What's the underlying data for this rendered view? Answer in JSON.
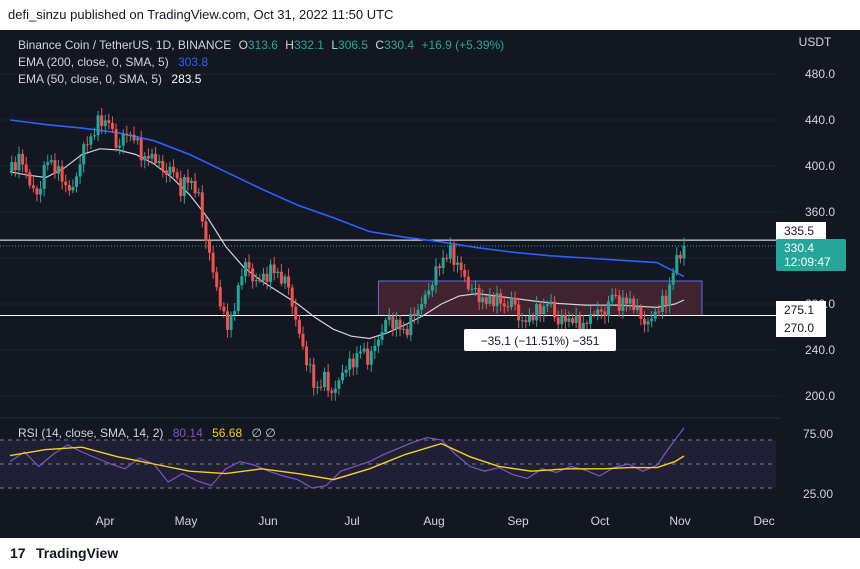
{
  "header": {
    "publisher_line": "defi_sinzu published on TradingView.com, Oct 31, 2022 11:50 UTC"
  },
  "footer": {
    "logo_glyph": "17",
    "brand": "TradingView"
  },
  "legend": {
    "symbol": "Binance Coin / TetherUS, 1D, BINANCE",
    "o_label": "O",
    "o": "313.6",
    "h_label": "H",
    "h": "332.1",
    "l_label": "L",
    "l": "306.5",
    "c_label": "C",
    "c": "330.4",
    "change": "+16.9 (+5.39%)",
    "ema200_label": "EMA (200, close, 0, SMA, 5)",
    "ema200_value": "303.8",
    "ema50_label": "EMA (50, close, 0, SMA, 5)",
    "ema50_value": "283.5",
    "rsi_label": "RSI (14, close, SMA, 14, 2)",
    "rsi_value": "80.14",
    "rsi_sma_value": "56.68",
    "rsi_extra": "∅ ∅"
  },
  "measure_label": "−35.1 (−11.51%) −351",
  "price_tags": {
    "level_upper": "335.5",
    "last_price": "330.4",
    "countdown": "12:09:47",
    "level_lower_a": "275.1",
    "level_lower_b": "270.0"
  },
  "colors": {
    "background": "#131722",
    "up": "#26a69a",
    "down": "#ef5350",
    "ema200": "#2962ff",
    "ema50": "#d1d4dc",
    "rsi": "#7e57c2",
    "rsi_sma": "#f7d117",
    "range_box": "#4a2632",
    "range_border": "#5b6ee1",
    "text": "#d1d4dc"
  },
  "chart_data": {
    "type": "candlestick",
    "symbol": "Binance Coin / TetherUS",
    "interval": "1D",
    "currency": "USDT",
    "y_ticks": [
      200,
      240,
      280,
      320,
      360,
      400,
      440,
      480
    ],
    "y_tick_labels": [
      "200.0",
      "240.0",
      "280.0",
      "320.0",
      "360.0",
      "400.0",
      "440.0",
      "480.0"
    ],
    "x_labels": [
      "Apr",
      "May",
      "Jun",
      "Jul",
      "Aug",
      "Sep",
      "Oct",
      "Nov",
      "Dec"
    ],
    "last_close": 330.4,
    "ohlc_last": {
      "open": 313.6,
      "high": 332.1,
      "low": 306.5,
      "close": 330.4,
      "change": 16.9,
      "change_pct": 5.39
    },
    "horizontal_levels": [
      335.5,
      275.1,
      270.0
    ],
    "range_box": {
      "top": 300,
      "bottom": 270
    },
    "close_path": [
      [
        0,
        395
      ],
      [
        5,
        408
      ],
      [
        10,
        390
      ],
      [
        15,
        372
      ],
      [
        20,
        405
      ],
      [
        25,
        400
      ],
      [
        30,
        385
      ],
      [
        35,
        378
      ],
      [
        40,
        412
      ],
      [
        45,
        425
      ],
      [
        50,
        440
      ],
      [
        55,
        438
      ],
      [
        60,
        415
      ],
      [
        65,
        430
      ],
      [
        70,
        422
      ],
      [
        75,
        405
      ],
      [
        80,
        410
      ],
      [
        85,
        395
      ],
      [
        90,
        398
      ],
      [
        95,
        380
      ],
      [
        100,
        390
      ],
      [
        105,
        372
      ],
      [
        110,
        328
      ],
      [
        115,
        295
      ],
      [
        120,
        260
      ],
      [
        125,
        275
      ],
      [
        130,
        318
      ],
      [
        135,
        302
      ],
      [
        140,
        300
      ],
      [
        145,
        310
      ],
      [
        150,
        305
      ],
      [
        155,
        295
      ],
      [
        160,
        258
      ],
      [
        165,
        232
      ],
      [
        170,
        205
      ],
      [
        175,
        215
      ],
      [
        180,
        200
      ],
      [
        185,
        222
      ],
      [
        190,
        228
      ],
      [
        195,
        240
      ],
      [
        200,
        232
      ],
      [
        205,
        250
      ],
      [
        210,
        268
      ],
      [
        215,
        262
      ],
      [
        220,
        255
      ],
      [
        225,
        272
      ],
      [
        230,
        282
      ],
      [
        235,
        300
      ],
      [
        240,
        318
      ],
      [
        245,
        325
      ],
      [
        250,
        312
      ],
      [
        255,
        296
      ],
      [
        260,
        288
      ],
      [
        265,
        281
      ],
      [
        270,
        286
      ],
      [
        275,
        278
      ],
      [
        280,
        283
      ],
      [
        285,
        262
      ],
      [
        290,
        270
      ],
      [
        295,
        275
      ],
      [
        300,
        282
      ],
      [
        305,
        264
      ],
      [
        310,
        268
      ],
      [
        315,
        264
      ],
      [
        320,
        260
      ],
      [
        325,
        275
      ],
      [
        330,
        270
      ],
      [
        335,
        288
      ],
      [
        340,
        279
      ],
      [
        345,
        284
      ],
      [
        350,
        270
      ],
      [
        355,
        262
      ],
      [
        360,
        276
      ],
      [
        365,
        283
      ],
      [
        370,
        315
      ],
      [
        375,
        330.4
      ]
    ],
    "ema200_path": [
      [
        0,
        440
      ],
      [
        20,
        436
      ],
      [
        40,
        433
      ],
      [
        60,
        429
      ],
      [
        80,
        422
      ],
      [
        100,
        410
      ],
      [
        120,
        395
      ],
      [
        140,
        380
      ],
      [
        160,
        366
      ],
      [
        180,
        355
      ],
      [
        200,
        343
      ],
      [
        220,
        338
      ],
      [
        240,
        334
      ],
      [
        260,
        329
      ],
      [
        280,
        325
      ],
      [
        300,
        322
      ],
      [
        320,
        320
      ],
      [
        340,
        318
      ],
      [
        360,
        316
      ],
      [
        375,
        303.8
      ]
    ],
    "ema50_path": [
      [
        0,
        395
      ],
      [
        10,
        392
      ],
      [
        20,
        390
      ],
      [
        30,
        398
      ],
      [
        40,
        410
      ],
      [
        50,
        415
      ],
      [
        60,
        414
      ],
      [
        70,
        410
      ],
      [
        80,
        402
      ],
      [
        90,
        390
      ],
      [
        100,
        375
      ],
      [
        110,
        355
      ],
      [
        120,
        330
      ],
      [
        130,
        312
      ],
      [
        140,
        300
      ],
      [
        150,
        290
      ],
      [
        160,
        280
      ],
      [
        170,
        268
      ],
      [
        180,
        258
      ],
      [
        190,
        252
      ],
      [
        200,
        250
      ],
      [
        210,
        255
      ],
      [
        220,
        262
      ],
      [
        230,
        270
      ],
      [
        240,
        280
      ],
      [
        250,
        287
      ],
      [
        260,
        289
      ],
      [
        270,
        287
      ],
      [
        280,
        285
      ],
      [
        290,
        283
      ],
      [
        300,
        281
      ],
      [
        310,
        280
      ],
      [
        320,
        279
      ],
      [
        330,
        279
      ],
      [
        340,
        279
      ],
      [
        350,
        278
      ],
      [
        360,
        277
      ],
      [
        370,
        280
      ],
      [
        375,
        283.5
      ]
    ],
    "rsi": {
      "levels": [
        30,
        50,
        70
      ],
      "y_tick_labels": [
        "25.00",
        "75.00"
      ],
      "y_ticks": [
        25,
        75
      ],
      "current": 80.14,
      "sma_current": 56.68,
      "rsi_path": [
        [
          0,
          52
        ],
        [
          8,
          60
        ],
        [
          16,
          48
        ],
        [
          24,
          58
        ],
        [
          32,
          66
        ],
        [
          40,
          60
        ],
        [
          48,
          55
        ],
        [
          56,
          50
        ],
        [
          64,
          46
        ],
        [
          72,
          55
        ],
        [
          80,
          50
        ],
        [
          88,
          35
        ],
        [
          96,
          42
        ],
        [
          104,
          36
        ],
        [
          112,
          32
        ],
        [
          120,
          46
        ],
        [
          128,
          52
        ],
        [
          136,
          49
        ],
        [
          144,
          44
        ],
        [
          152,
          40
        ],
        [
          160,
          37
        ],
        [
          168,
          30
        ],
        [
          176,
          32
        ],
        [
          184,
          44
        ],
        [
          192,
          48
        ],
        [
          200,
          52
        ],
        [
          208,
          58
        ],
        [
          216,
          63
        ],
        [
          224,
          68
        ],
        [
          232,
          72
        ],
        [
          240,
          70
        ],
        [
          248,
          58
        ],
        [
          256,
          48
        ],
        [
          264,
          44
        ],
        [
          272,
          47
        ],
        [
          280,
          41
        ],
        [
          288,
          38
        ],
        [
          296,
          46
        ],
        [
          304,
          43
        ],
        [
          312,
          48
        ],
        [
          320,
          45
        ],
        [
          328,
          40
        ],
        [
          336,
          47
        ],
        [
          344,
          50
        ],
        [
          352,
          44
        ],
        [
          360,
          49
        ],
        [
          366,
          62
        ],
        [
          372,
          74
        ],
        [
          375,
          80.14
        ]
      ],
      "sma_path": [
        [
          0,
          57
        ],
        [
          20,
          62
        ],
        [
          40,
          64
        ],
        [
          60,
          56
        ],
        [
          80,
          50
        ],
        [
          100,
          44
        ],
        [
          120,
          42
        ],
        [
          140,
          46
        ],
        [
          160,
          42
        ],
        [
          180,
          37
        ],
        [
          200,
          46
        ],
        [
          220,
          58
        ],
        [
          240,
          67
        ],
        [
          256,
          56
        ],
        [
          272,
          48
        ],
        [
          290,
          44
        ],
        [
          310,
          46
        ],
        [
          330,
          46
        ],
        [
          345,
          47
        ],
        [
          360,
          47
        ],
        [
          370,
          52
        ],
        [
          375,
          56.68
        ]
      ]
    }
  }
}
